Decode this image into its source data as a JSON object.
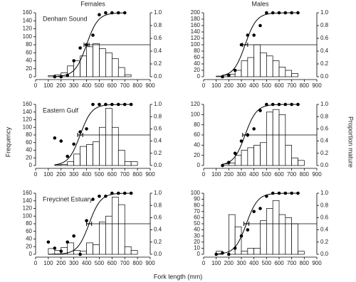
{
  "labels": {
    "x": "Fork length (mm)",
    "y": "Frequency",
    "y2": "Proportion mature"
  },
  "chart_data": [
    {
      "type": "histogram",
      "title": "Females",
      "annotation": "Denham Sound",
      "bins": [
        100,
        150,
        200,
        250,
        300,
        350,
        400,
        450,
        500,
        550,
        600,
        650,
        700,
        750,
        800
      ],
      "values": [
        3,
        5,
        10,
        27,
        40,
        52,
        75,
        83,
        70,
        60,
        45,
        23,
        5,
        0
      ],
      "points": {
        "x": [
          150,
          200,
          250,
          300,
          350,
          400,
          450,
          500,
          550,
          600,
          650,
          700
        ],
        "values": [
          0,
          0,
          0.02,
          0.25,
          0.45,
          0.5,
          0.65,
          0.97,
          1,
          1,
          1,
          1
        ]
      },
      "fit": {
        "l50": 400,
        "l50_error": 20,
        "slope": 0.022
      },
      "reference_line": 0.5,
      "xlim": [
        0,
        900
      ],
      "xticks": [
        0,
        100,
        200,
        300,
        400,
        500,
        600,
        700,
        800,
        900
      ],
      "ylim": [
        0,
        160
      ],
      "yticks": [
        0,
        20,
        40,
        60,
        80,
        100,
        120,
        140,
        160
      ],
      "y2lim": [
        0,
        1
      ],
      "y2ticks": [
        {
          "value": 0,
          "label": "0.0"
        },
        {
          "value": 0.2,
          "label": "0.2"
        },
        {
          "value": 0.4,
          "label": "0.4"
        },
        {
          "value": 0.6,
          "label": "0.6"
        },
        {
          "value": 0.8,
          "label": "0.8"
        },
        {
          "value": 1,
          "label": "1.0"
        }
      ]
    },
    {
      "type": "histogram",
      "title": "Males",
      "bins": [
        100,
        150,
        200,
        250,
        300,
        350,
        400,
        450,
        500,
        550,
        600,
        650,
        700,
        750,
        800
      ],
      "values": [
        2,
        5,
        8,
        20,
        50,
        60,
        100,
        75,
        65,
        50,
        30,
        20,
        10,
        0
      ],
      "points": {
        "x": [
          150,
          200,
          250,
          300,
          350,
          400,
          450,
          500,
          550,
          600,
          650,
          700,
          750
        ],
        "values": [
          0,
          0.02,
          0.1,
          0.5,
          0.65,
          0.65,
          0.8,
          1,
          1,
          1,
          1,
          1,
          1
        ]
      },
      "fit": {
        "l50": 330,
        "l50_error": 20,
        "slope": 0.022
      },
      "reference_line": 0.5,
      "xlim": [
        0,
        900
      ],
      "xticks": [
        0,
        100,
        200,
        300,
        400,
        500,
        600,
        700,
        800,
        900
      ],
      "ylim": [
        0,
        200
      ],
      "yticks": [
        0,
        20,
        40,
        60,
        80,
        100,
        120,
        140,
        160,
        180,
        200
      ],
      "y2lim": [
        0,
        1
      ],
      "y2ticks": [
        {
          "value": 0,
          "label": "0.0"
        },
        {
          "value": 0.2,
          "label": "0.2"
        },
        {
          "value": 0.4,
          "label": "0.4"
        },
        {
          "value": 0.6,
          "label": "0.6"
        },
        {
          "value": 0.8,
          "label": "0.8"
        },
        {
          "value": 1,
          "label": "1.0"
        }
      ]
    },
    {
      "type": "histogram",
      "annotation": "Eastern Gulf",
      "bins": [
        100,
        150,
        200,
        250,
        300,
        350,
        400,
        450,
        500,
        550,
        600,
        650,
        700,
        750,
        800
      ],
      "values": [
        0,
        2,
        3,
        10,
        30,
        50,
        55,
        62,
        100,
        150,
        100,
        40,
        10,
        10
      ],
      "points": {
        "x": [
          150,
          200,
          250,
          300,
          350,
          400,
          450,
          500,
          550,
          600,
          650,
          700,
          750
        ],
        "values": [
          0.45,
          0.4,
          0.15,
          0.35,
          0.55,
          0.6,
          1,
          1,
          1,
          1,
          1,
          1,
          1
        ]
      },
      "fit": {
        "l50": 350,
        "l50_error": 20,
        "slope": 0.022
      },
      "reference_line": 0.5,
      "xlim": [
        0,
        900
      ],
      "xticks": [
        0,
        100,
        200,
        300,
        400,
        500,
        600,
        700,
        800,
        900
      ],
      "ylim": [
        0,
        160
      ],
      "yticks": [
        0,
        20,
        40,
        60,
        80,
        100,
        120,
        140,
        160
      ],
      "y2lim": [
        0,
        1
      ],
      "y2ticks": [
        {
          "value": 0,
          "label": "0.0"
        },
        {
          "value": 0.2,
          "label": "0.2"
        },
        {
          "value": 0.4,
          "label": "0.4"
        },
        {
          "value": 0.6,
          "label": "0.6"
        },
        {
          "value": 0.8,
          "label": "0.8"
        },
        {
          "value": 1,
          "label": "1.0"
        }
      ]
    },
    {
      "type": "histogram",
      "bins": [
        100,
        150,
        200,
        250,
        300,
        350,
        400,
        450,
        500,
        550,
        600,
        650,
        700,
        750,
        800
      ],
      "values": [
        0,
        3,
        5,
        20,
        30,
        35,
        40,
        45,
        105,
        110,
        100,
        40,
        15,
        10
      ],
      "points": {
        "x": [
          150,
          200,
          250,
          300,
          350,
          400,
          450,
          500,
          550,
          600,
          650,
          700,
          750
        ],
        "values": [
          0,
          0.05,
          0.2,
          0.4,
          0.5,
          0.6,
          0.9,
          1,
          1,
          1,
          1,
          1,
          1
        ]
      },
      "fit": {
        "l50": 330,
        "l50_error": 20,
        "slope": 0.022
      },
      "reference_line": 0.5,
      "xlim": [
        0,
        900
      ],
      "xticks": [
        0,
        100,
        200,
        300,
        400,
        500,
        600,
        700,
        800,
        900
      ],
      "ylim": [
        0,
        120
      ],
      "yticks": [
        0,
        20,
        40,
        60,
        80,
        100,
        120
      ],
      "y2lim": [
        0,
        1
      ],
      "y2ticks": [
        {
          "value": 0,
          "label": "0.0"
        },
        {
          "value": 0.2,
          "label": "0.2"
        },
        {
          "value": 0.4,
          "label": "0.4"
        },
        {
          "value": 0.6,
          "label": "0.6"
        },
        {
          "value": 0.8,
          "label": "0.8"
        },
        {
          "value": 1,
          "label": "1.0"
        }
      ]
    },
    {
      "type": "histogram",
      "annotation": "Freycinet Estuary",
      "bins": [
        100,
        150,
        200,
        250,
        300,
        350,
        400,
        450,
        500,
        550,
        600,
        650,
        700,
        750,
        800
      ],
      "values": [
        15,
        10,
        18,
        30,
        10,
        8,
        30,
        25,
        85,
        100,
        150,
        130,
        20,
        10
      ],
      "points": {
        "x": [
          100,
          150,
          200,
          250,
          300,
          350,
          400,
          450,
          500,
          550,
          600,
          650,
          700,
          750
        ],
        "values": [
          0.2,
          0.1,
          0.05,
          0.2,
          0.3,
          0,
          0.55,
          0.9,
          0.95,
          0.95,
          1,
          1,
          1,
          1
        ]
      },
      "fit": {
        "l50": 420,
        "l50_error": 20,
        "slope": 0.022
      },
      "reference_line": 0.5,
      "xlim": [
        0,
        900
      ],
      "xticks": [
        0,
        100,
        200,
        300,
        400,
        500,
        600,
        700,
        800,
        900
      ],
      "ylim": [
        0,
        160
      ],
      "yticks": [
        0,
        20,
        40,
        60,
        80,
        100,
        120,
        140,
        160
      ],
      "y2lim": [
        0,
        1
      ],
      "y2ticks": [
        {
          "value": 0,
          "label": "0.0"
        },
        {
          "value": 0.2,
          "label": "0.2"
        },
        {
          "value": 0.4,
          "label": "0.4"
        },
        {
          "value": 0.6,
          "label": "0.6"
        },
        {
          "value": 0.8,
          "label": "0.8"
        },
        {
          "value": 1,
          "label": "1.0"
        }
      ]
    },
    {
      "type": "histogram",
      "bins": [
        100,
        150,
        200,
        250,
        300,
        350,
        400,
        450,
        500,
        550,
        600,
        650,
        700,
        750,
        800
      ],
      "values": [
        5,
        0,
        65,
        45,
        5,
        10,
        10,
        55,
        75,
        88,
        65,
        60,
        50,
        5
      ],
      "points": {
        "x": [
          100,
          150,
          200,
          250,
          300,
          350,
          400,
          450,
          500,
          550,
          600,
          650,
          700,
          750
        ],
        "values": [
          0,
          0.02,
          0,
          0.1,
          0.3,
          0.4,
          0.7,
          0.75,
          0.95,
          1,
          1,
          1,
          1,
          1
        ]
      },
      "fit": {
        "l50": 340,
        "l50_error": 20,
        "slope": 0.022
      },
      "reference_line": 0.5,
      "xlim": [
        0,
        900
      ],
      "xticks": [
        0,
        100,
        200,
        300,
        400,
        500,
        600,
        700,
        800,
        900
      ],
      "ylim": [
        0,
        100
      ],
      "yticks": [
        0,
        10,
        20,
        30,
        40,
        50,
        60,
        70,
        80,
        90,
        100
      ],
      "y2lim": [
        0,
        1
      ],
      "y2ticks": [
        {
          "value": 0,
          "label": "0.0"
        },
        {
          "value": 0.2,
          "label": "0.2"
        },
        {
          "value": 0.4,
          "label": "0.4"
        },
        {
          "value": 0.6,
          "label": "0.6"
        },
        {
          "value": 0.8,
          "label": "0.8"
        },
        {
          "value": 1,
          "label": "1.0"
        }
      ]
    }
  ]
}
